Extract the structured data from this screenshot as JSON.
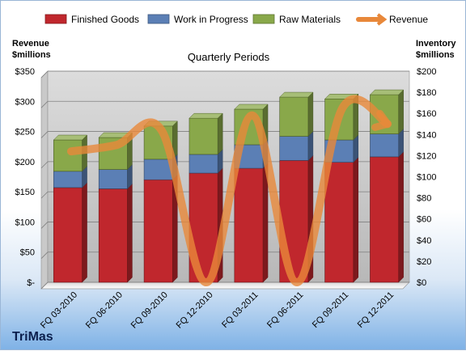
{
  "chart_data": {
    "type": "bar",
    "stacked": true,
    "title": "Quarterly Periods",
    "brand": "TriMas",
    "left_axis": {
      "title_line1": "Revenue",
      "title_line2": "$millions",
      "ylim": [
        0,
        350
      ],
      "tick_values": [
        0,
        50,
        100,
        150,
        200,
        250,
        300,
        350
      ],
      "tick_labels": [
        "$-",
        "$50",
        "$100",
        "$150",
        "$200",
        "$250",
        "$300",
        "$350"
      ]
    },
    "right_axis": {
      "title_line1": "Inventory",
      "title_line2": "$millions",
      "ylim": [
        0,
        200
      ],
      "tick_values": [
        0,
        20,
        40,
        60,
        80,
        100,
        120,
        140,
        160,
        180,
        200
      ],
      "tick_labels": [
        "$0",
        "$20",
        "$40",
        "$60",
        "$80",
        "$100",
        "$120",
        "$140",
        "$160",
        "$180",
        "$200"
      ]
    },
    "categories": [
      "FQ 03-2010",
      "FQ 06-2010",
      "FQ 09-2010",
      "FQ 12-2010",
      "FQ 03-2011",
      "FQ 06-2011",
      "FQ 09-2011",
      "FQ 12-2011"
    ],
    "series": [
      {
        "name": "Finished Goods",
        "color": "#c0272d",
        "axis": "left",
        "values": [
          157,
          155,
          170,
          181,
          189,
          202,
          199,
          208
        ]
      },
      {
        "name": "Work in Progress",
        "color": "#5b7fb5",
        "axis": "left",
        "values": [
          27,
          32,
          34,
          31,
          39,
          40,
          37,
          38
        ]
      },
      {
        "name": "Raw Materials",
        "color": "#89a84a",
        "axis": "left",
        "values": [
          52,
          53,
          55,
          60,
          59,
          65,
          68,
          65
        ]
      },
      {
        "name": "Revenue",
        "color": "#e8883a",
        "axis": "right",
        "type": "line",
        "values": [
          124,
          130,
          144,
          0,
          158,
          0,
          165,
          150
        ]
      }
    ],
    "legend_position": "top",
    "grid": true
  }
}
